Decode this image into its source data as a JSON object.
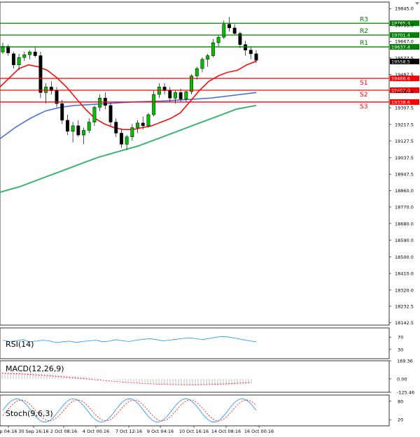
{
  "chart_data": {
    "type": "candlestick",
    "symbol_price_axis": {
      "ylim": [
        18130,
        19880
      ],
      "ticks": [
        19845.0,
        19755.5,
        19667.0,
        19577.5,
        19487.5,
        19397.5,
        19307.5,
        19217.5,
        19127.5,
        19037.5,
        18947.5,
        18860.0,
        18770.0,
        18680.0,
        18590.0,
        18500.0,
        18410.0,
        18320.0,
        18232.5,
        18142.5
      ],
      "tick_labels": [
        "19845.0",
        "19755.5",
        "19667.0",
        "19577.5",
        "19487.5",
        "19397.5",
        "19307.5",
        "19217.5",
        "19127.5",
        "19037.5",
        "18947.5",
        "18860.0",
        "18770.0",
        "18680.0",
        "18590.0",
        "18500.0",
        "18410.0",
        "18320.0",
        "18232.5",
        "18142.5"
      ],
      "current_price": 19558.5,
      "current_price_label": "19558.5"
    },
    "x_tick_labels": [
      "p 04:16",
      "30 Sep 16:16",
      "2 Oct 08:16",
      "4 Oct 00:16",
      "7 Oct 12:16",
      "9 Oct 04:16",
      "10 Oct 16:16",
      "14 Oct 08:16",
      "16 Oct 00:16"
    ],
    "levels": [
      {
        "name": "R3",
        "value": 19765.4,
        "label": "19765.4",
        "color": "#008000"
      },
      {
        "name": "R2",
        "value": 19701.4,
        "label": "19701.4",
        "color": "#008000"
      },
      {
        "name": "R1",
        "value": 19637.4,
        "label": "19637.4",
        "color": "#008000"
      },
      {
        "name": "S1",
        "value": 19466.6,
        "label": "19466.6",
        "color": "#ff0000"
      },
      {
        "name": "S2",
        "value": 19402.6,
        "label": "19402.6",
        "color": "#ff0000"
      },
      {
        "name": "S3",
        "value": 19338.6,
        "label": "19338.6",
        "color": "#ff0000"
      }
    ],
    "candles": [
      [
        19610,
        19660,
        19600,
        19640
      ],
      [
        19640,
        19650,
        19590,
        19605
      ],
      [
        19600,
        19610,
        19520,
        19540
      ],
      [
        19540,
        19600,
        19510,
        19580
      ],
      [
        19580,
        19610,
        19560,
        19595
      ],
      [
        19595,
        19620,
        19570,
        19610
      ],
      [
        19610,
        19640,
        19580,
        19590
      ],
      [
        19590,
        19610,
        19360,
        19390
      ],
      [
        19390,
        19440,
        19330,
        19420
      ],
      [
        19420,
        19450,
        19380,
        19400
      ],
      [
        19400,
        19420,
        19310,
        19330
      ],
      [
        19330,
        19350,
        19220,
        19240
      ],
      [
        19240,
        19270,
        19160,
        19180
      ],
      [
        19180,
        19230,
        19120,
        19210
      ],
      [
        19210,
        19240,
        19150,
        19160
      ],
      [
        19160,
        19200,
        19110,
        19185
      ],
      [
        19185,
        19250,
        19170,
        19230
      ],
      [
        19230,
        19320,
        19210,
        19310
      ],
      [
        19310,
        19380,
        19290,
        19360
      ],
      [
        19360,
        19390,
        19300,
        19320
      ],
      [
        19320,
        19340,
        19210,
        19230
      ],
      [
        19230,
        19250,
        19150,
        19170
      ],
      [
        19170,
        19190,
        19090,
        19110
      ],
      [
        19110,
        19160,
        19080,
        19150
      ],
      [
        19150,
        19220,
        19130,
        19200
      ],
      [
        19200,
        19240,
        19170,
        19225
      ],
      [
        19225,
        19260,
        19190,
        19210
      ],
      [
        19210,
        19280,
        19200,
        19270
      ],
      [
        19270,
        19400,
        19260,
        19380
      ],
      [
        19380,
        19440,
        19360,
        19420
      ],
      [
        19420,
        19440,
        19380,
        19400
      ],
      [
        19400,
        19420,
        19340,
        19360
      ],
      [
        19360,
        19400,
        19330,
        19390
      ],
      [
        19390,
        19410,
        19340,
        19355
      ],
      [
        19355,
        19400,
        19340,
        19395
      ],
      [
        19395,
        19490,
        19380,
        19480
      ],
      [
        19480,
        19530,
        19460,
        19520
      ],
      [
        19520,
        19580,
        19500,
        19570
      ],
      [
        19570,
        19600,
        19530,
        19590
      ],
      [
        19590,
        19680,
        19580,
        19660
      ],
      [
        19660,
        19700,
        19640,
        19690
      ],
      [
        19690,
        19780,
        19680,
        19760
      ],
      [
        19760,
        19800,
        19720,
        19740
      ],
      [
        19740,
        19760,
        19700,
        19710
      ],
      [
        19710,
        19720,
        19630,
        19650
      ],
      [
        19650,
        19670,
        19590,
        19620
      ],
      [
        19620,
        19640,
        19570,
        19600
      ],
      [
        19600,
        19620,
        19550,
        19565
      ]
    ],
    "ma_fast_red": [
      19420,
      19470,
      19520,
      19540,
      19530,
      19510,
      19470,
      19420,
      19360,
      19300,
      19250,
      19220,
      19200,
      19190,
      19190,
      19200,
      19210,
      19230,
      19250,
      19280,
      19340,
      19400,
      19450,
      19480,
      19500,
      19510,
      19540,
      19560
    ],
    "ma_mid_blue": [
      19140,
      19200,
      19250,
      19290,
      19310,
      19320,
      19325,
      19330,
      19335,
      19340,
      19342,
      19345,
      19350,
      19355,
      19360,
      19370,
      19380,
      19390
    ],
    "ma_slow_green": [
      18850,
      18880,
      18920,
      18960,
      19000,
      19040,
      19070,
      19100,
      19140,
      19180,
      19220,
      19260,
      19300,
      19320
    ],
    "rsi": {
      "label": "RSI(14)",
      "ticks": [
        70,
        30
      ],
      "tick_labels": [
        "70",
        "30"
      ],
      "values": [
        60,
        56,
        58,
        62,
        55,
        57,
        60,
        58,
        52,
        55,
        57,
        53,
        56,
        58,
        60,
        55,
        57,
        62,
        58,
        56,
        60,
        63,
        65,
        62,
        58,
        60,
        63,
        66,
        68,
        65,
        62,
        66,
        70,
        72,
        70,
        66,
        62,
        58,
        55
      ]
    },
    "macd": {
      "label": "MACD(12,26,9)",
      "ticks": [
        169.36,
        0.0,
        -125.46
      ],
      "tick_labels": [
        "169.36",
        "0.00",
        "-125.46"
      ],
      "ylim": [
        -125.46,
        169.36
      ]
    },
    "stoch": {
      "label": "Stoch(9,6,3)",
      "ticks": [
        80,
        20
      ],
      "tick_labels": [
        "80",
        "20"
      ]
    }
  }
}
